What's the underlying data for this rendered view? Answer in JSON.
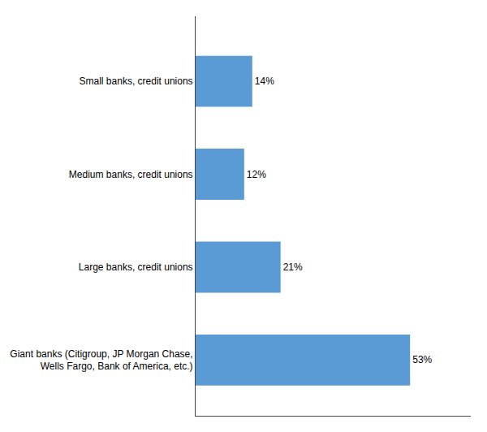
{
  "chart_data": {
    "type": "bar",
    "orientation": "horizontal",
    "categories": [
      "Giant banks (Citigroup, JP Morgan Chase,\nWells Fargo, Bank of America, etc.)",
      "Large banks, credit unions",
      "Medium banks, credit unions",
      "Small banks, credit unions"
    ],
    "values": [
      53,
      21,
      12,
      14
    ],
    "value_labels": [
      "53%",
      "21%",
      "12%",
      "14%"
    ],
    "data_labels": true,
    "color": "#5B9BD5",
    "xlim": [
      0,
      68
    ],
    "grid": false,
    "tick_labels": "y"
  }
}
